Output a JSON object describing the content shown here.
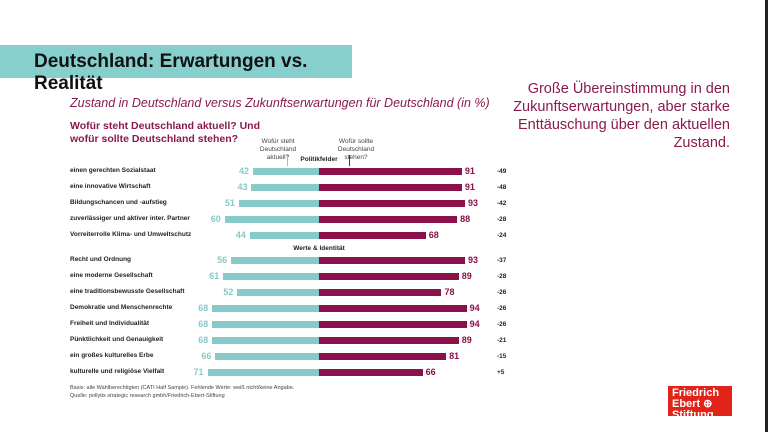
{
  "title": "Deutschland: Erwartungen vs. Realität",
  "side_text": "Große Übereinstimmung in den Zukunftserwartungen, aber starke Enttäuschung über den aktuellen Zustand.",
  "chart_data": {
    "type": "bar",
    "title": "Zustand in Deutschland versus Zukunftserwartungen für Deutschland (in %)",
    "question": "Wofür steht Deutschland aktuell? Und wofür sollte Deutschland stehen?",
    "legend": {
      "current": "Wofür steht Deutschland aktuell?",
      "future": "Wofür sollte Deutschland stehen?"
    },
    "colors": {
      "current": "#86cbc9",
      "future": "#8a0f4a"
    },
    "groups": [
      {
        "name": "Politikfelder",
        "rows": [
          {
            "label": "einen gerechten Sozialstaat",
            "current": 42,
            "future": 91,
            "diff": "-49"
          },
          {
            "label": "eine innovative Wirtschaft",
            "current": 43,
            "future": 91,
            "diff": "-48"
          },
          {
            "label": "Bildungschancen und -aufstieg",
            "current": 51,
            "future": 93,
            "diff": "-42"
          },
          {
            "label": "zuverlässiger und aktiver inter. Partner",
            "current": 60,
            "future": 88,
            "diff": "-28"
          },
          {
            "label": "Vorreiterrolle Klima- und Umweltschutz",
            "current": 44,
            "future": 68,
            "diff": "-24"
          }
        ]
      },
      {
        "name": "Werte & Identität",
        "rows": [
          {
            "label": "Recht und Ordnung",
            "current": 56,
            "future": 93,
            "diff": "-37"
          },
          {
            "label": "eine moderne Gesellschaft",
            "current": 61,
            "future": 89,
            "diff": "-28"
          },
          {
            "label": "eine traditionsbewusste Gesellschaft",
            "current": 52,
            "future": 78,
            "diff": "-26"
          },
          {
            "label": "Demokratie und Menschenrechte",
            "current": 68,
            "future": 94,
            "diff": "-26"
          },
          {
            "label": "Freiheit und Individualität",
            "current": 68,
            "future": 94,
            "diff": "-26"
          },
          {
            "label": "Pünktlichkeit und Genauigkeit",
            "current": 68,
            "future": 89,
            "diff": "-21"
          },
          {
            "label": "ein großes kulturelles Erbe",
            "current": 66,
            "future": 81,
            "diff": "-15"
          },
          {
            "label": "kulturelle und religiöse Vielfalt",
            "current": 71,
            "future": 66,
            "diff": "+5"
          }
        ]
      }
    ],
    "footnotes": [
      "Basis: alle Wahlberechtigten (CATI Half Sample). Fehlende Werte: weiß nicht/keine Angabe.",
      "Quelle: pollytix strategic research gmbh/Friedrich-Ebert-Stiftung"
    ]
  },
  "logo": "Friedrich Ebert Stiftung"
}
